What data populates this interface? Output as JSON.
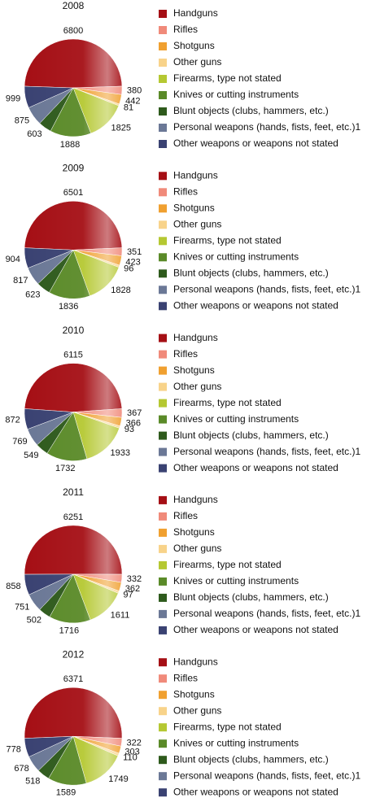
{
  "chart_data": [
    {
      "type": "pie",
      "title": "2008",
      "categories": [
        "Handguns",
        "Rifles",
        "Shotguns",
        "Other guns",
        "Firearms, type not stated",
        "Knives or cutting instruments",
        "Blunt objects (clubs, hammers, etc.)",
        "Personal weapons (hands, fists, feet, etc.)1",
        "Other weapons or weapons not stated"
      ],
      "values": [
        6800,
        380,
        442,
        81,
        1825,
        1888,
        603,
        875,
        999
      ],
      "colors": [
        "#a50f15",
        "#f08a7a",
        "#f0a030",
        "#f8d38a",
        "#b5c832",
        "#5a8a28",
        "#2e5a1c",
        "#6b7896",
        "#3a4272"
      ]
    },
    {
      "type": "pie",
      "title": "2009",
      "categories": [
        "Handguns",
        "Rifles",
        "Shotguns",
        "Other guns",
        "Firearms, type not stated",
        "Knives or cutting instruments",
        "Blunt objects (clubs, hammers, etc.)",
        "Personal weapons (hands, fists, feet, etc.)1",
        "Other weapons or weapons not stated"
      ],
      "values": [
        6501,
        351,
        423,
        96,
        1828,
        1836,
        623,
        817,
        904
      ],
      "colors": [
        "#a50f15",
        "#f08a7a",
        "#f0a030",
        "#f8d38a",
        "#b5c832",
        "#5a8a28",
        "#2e5a1c",
        "#6b7896",
        "#3a4272"
      ]
    },
    {
      "type": "pie",
      "title": "2010",
      "categories": [
        "Handguns",
        "Rifles",
        "Shotguns",
        "Other guns",
        "Firearms, type not stated",
        "Knives or cutting instruments",
        "Blunt objects (clubs, hammers, etc.)",
        "Personal weapons (hands, fists, feet, etc.)1",
        "Other weapons or weapons not stated"
      ],
      "values": [
        6115,
        367,
        366,
        93,
        1933,
        1732,
        549,
        769,
        872
      ],
      "colors": [
        "#a50f15",
        "#f08a7a",
        "#f0a030",
        "#f8d38a",
        "#b5c832",
        "#5a8a28",
        "#2e5a1c",
        "#6b7896",
        "#3a4272"
      ]
    },
    {
      "type": "pie",
      "title": "2011",
      "categories": [
        "Handguns",
        "Rifles",
        "Shotguns",
        "Other guns",
        "Firearms, type not stated",
        "Knives or cutting instruments",
        "Blunt objects (clubs, hammers, etc.)",
        "Personal weapons (hands, fists, feet, etc.)1",
        "Other weapons or weapons not stated"
      ],
      "values": [
        6251,
        332,
        362,
        97,
        1611,
        1716,
        502,
        751,
        858
      ],
      "colors": [
        "#a50f15",
        "#f08a7a",
        "#f0a030",
        "#f8d38a",
        "#b5c832",
        "#5a8a28",
        "#2e5a1c",
        "#6b7896",
        "#3a4272"
      ]
    },
    {
      "type": "pie",
      "title": "2012",
      "categories": [
        "Handguns",
        "Rifles",
        "Shotguns",
        "Other guns",
        "Firearms, type not stated",
        "Knives or cutting instruments",
        "Blunt objects (clubs, hammers, etc.)",
        "Personal weapons (hands, fists, feet, etc.)1",
        "Other weapons or weapons not stated"
      ],
      "values": [
        6371,
        322,
        303,
        110,
        1749,
        1589,
        518,
        678,
        778
      ],
      "colors": [
        "#a50f15",
        "#f08a7a",
        "#f0a030",
        "#f8d38a",
        "#b5c832",
        "#5a8a28",
        "#2e5a1c",
        "#6b7896",
        "#3a4272"
      ]
    }
  ]
}
